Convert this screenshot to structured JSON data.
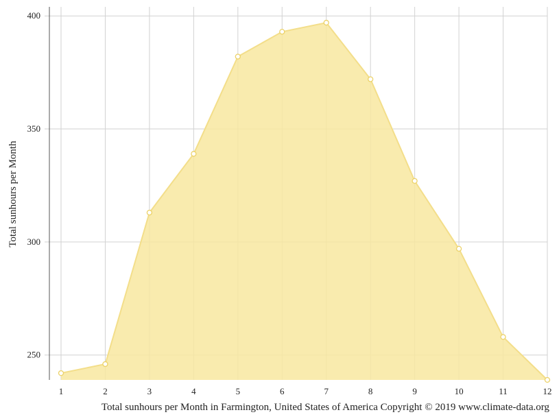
{
  "chart_data": {
    "type": "area",
    "x": [
      1,
      2,
      3,
      4,
      5,
      6,
      7,
      8,
      9,
      10,
      11,
      12
    ],
    "series": [
      {
        "values": [
          242,
          246,
          313,
          339,
          382,
          393,
          397,
          372,
          327,
          297,
          258,
          239
        ]
      }
    ],
    "ylabel": "Total sunhours per Month",
    "caption": "Total sunhours per Month in Farmington, United States of America Copyright © 2019 www.climate-data.org",
    "xlim": [
      1,
      12
    ],
    "ylim": [
      239,
      404
    ],
    "yticks": [
      250,
      300,
      350,
      400
    ],
    "grid": true,
    "colors": {
      "fill": "#f8e8a0",
      "line": "#f3de8a",
      "marker_stroke": "#ecd268",
      "marker_fill": "#ffffff"
    }
  }
}
